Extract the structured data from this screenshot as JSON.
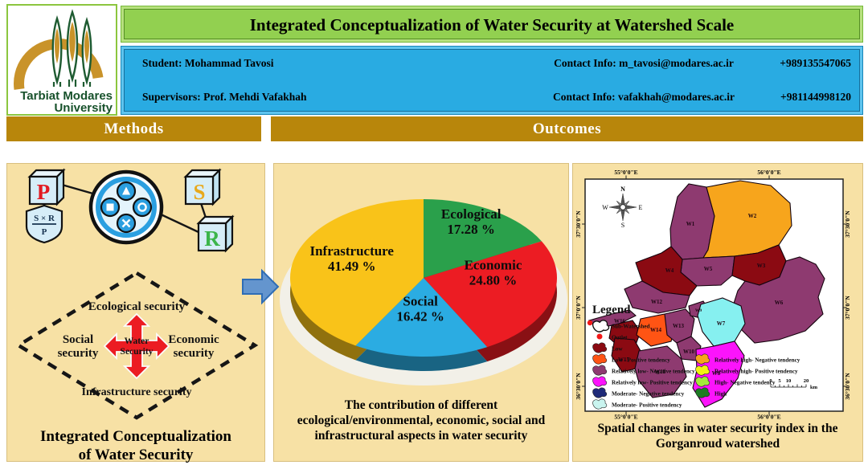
{
  "header": {
    "logo_line1": "Tarbiat Modares",
    "logo_line2": "University",
    "title": "Integrated Conceptualization of Water Security at Watershed Scale",
    "rows": [
      {
        "left": "Student: Mohammad Tavosi",
        "contact": "Contact Info: m_tavosi@modares.ac.ir",
        "phone": "+989135547065"
      },
      {
        "left": "Supervisors: Prof.  Mehdi Vafakhah",
        "contact": "Contact Info: vafakhah@modares.ac.ir",
        "phone": "+981144998120"
      }
    ]
  },
  "section_headers": {
    "methods": "Methods",
    "outcomes": "Outcomes"
  },
  "methods_panel": {
    "cube_p": "P",
    "cube_s": "S",
    "cube_r": "R",
    "formula_numerator": "S × R",
    "formula_denominator": "P",
    "diamond": {
      "top": "Ecological security",
      "left1": "Social",
      "left2": "security",
      "center1": "Water",
      "center2": "Security",
      "right1": "Economic",
      "right2": "security",
      "bottom": "Infrastructure security"
    },
    "caption": [
      "Integrated Conceptualization",
      "of Water Security"
    ]
  },
  "chart_data": {
    "type": "pie",
    "style": "3d",
    "labels": [
      "Ecological",
      "Economic",
      "Social",
      "Infrastructure"
    ],
    "values": [
      17.28,
      24.8,
      16.42,
      41.49
    ],
    "colors": [
      "#2AA04B",
      "#EC1C23",
      "#2BACE2",
      "#F9C319"
    ],
    "value_suffix": " %",
    "caption": [
      "The contribution of different",
      "ecological/environmental, economic, social and",
      "infrastructural aspects in water security"
    ]
  },
  "map": {
    "axis_top": [
      "55°0'0\"E",
      "56°0'0\"E"
    ],
    "axis_bottom": [
      "55°0'0\"E",
      "56°0'0\"E"
    ],
    "axis_left": [
      "37°30'0\"N",
      "37°0'0\"N",
      "36°30'0\"N"
    ],
    "axis_right": [
      "37°30'0\"N",
      "37°0'0\"N",
      "36°30'0\"N"
    ],
    "compass": {
      "n": "N",
      "w": "W",
      "e": "E",
      "s": "S"
    },
    "legend_title": "Legend",
    "legend_items": [
      {
        "label": "Sub-Watershed",
        "type": "outline"
      },
      {
        "label": "Outlet",
        "type": "dot",
        "color": "#F21818"
      },
      {
        "label": "Low",
        "color": "#8B0A12"
      },
      {
        "label": "Low - Positive tendency",
        "color": "#FF5414"
      },
      {
        "label": "Relatively low- Negative tendency",
        "color": "#8E3A70"
      },
      {
        "label": "Relatively low- Positive tendency",
        "color": "#FB14FB"
      },
      {
        "label": "Moderate- Negative tendency",
        "color": "#1F2A78"
      },
      {
        "label": "Moderate- Positive tendency",
        "color": "#C9F4EF"
      },
      {
        "label": "Relatively high- Negative tendency",
        "color": "#F7A51C",
        "column": 2
      },
      {
        "label": "Relatively high- Positive tendency",
        "color": "#F2F212",
        "column": 2
      },
      {
        "label": "High- Negative tendency",
        "color": "#A4E83C",
        "column": 2
      },
      {
        "label": "High",
        "color": "#1D7A23",
        "column": 2
      }
    ],
    "scalebar": {
      "ticks": [
        0,
        5,
        10,
        20
      ],
      "unit": "km"
    },
    "regions": [
      {
        "id": "tail",
        "label": "",
        "color": "#8E3A70"
      },
      {
        "id": "W1",
        "label": "W1",
        "color": "#8E3A70"
      },
      {
        "id": "W2",
        "label": "W2",
        "color": "#F7A51C"
      },
      {
        "id": "W5",
        "label": "W5",
        "color": "#8E3A70"
      },
      {
        "id": "W3",
        "label": "W3",
        "color": "#8B0A12"
      },
      {
        "id": "W4",
        "label": "W4",
        "color": "#8B0A12"
      },
      {
        "id": "W6",
        "label": "W6",
        "color": "#8E3A70"
      },
      {
        "id": "W12",
        "label": "W12",
        "color": "#8E3A70"
      },
      {
        "id": "W16",
        "label": "W16",
        "color": "#8B0A12"
      },
      {
        "id": "W14",
        "label": "W14",
        "color": "#FF5414"
      },
      {
        "id": "W15",
        "label": "W15",
        "color": "#8B0A12"
      },
      {
        "id": "W13",
        "label": "W13",
        "color": "#8E3A70"
      },
      {
        "id": "W9",
        "label": "W9",
        "color": "#8E3A70"
      },
      {
        "id": "W10",
        "label": "W10",
        "color": "#8E3A70"
      },
      {
        "id": "W7",
        "label": "W7",
        "color": "#86F0F0"
      },
      {
        "id": "W11",
        "label": "W11",
        "color": "#8E3A70"
      },
      {
        "id": "W8",
        "label": "W8",
        "color": "#FB14FB"
      }
    ],
    "caption": [
      "Spatial changes in water security index in the",
      "Gorganroud watershed"
    ]
  }
}
